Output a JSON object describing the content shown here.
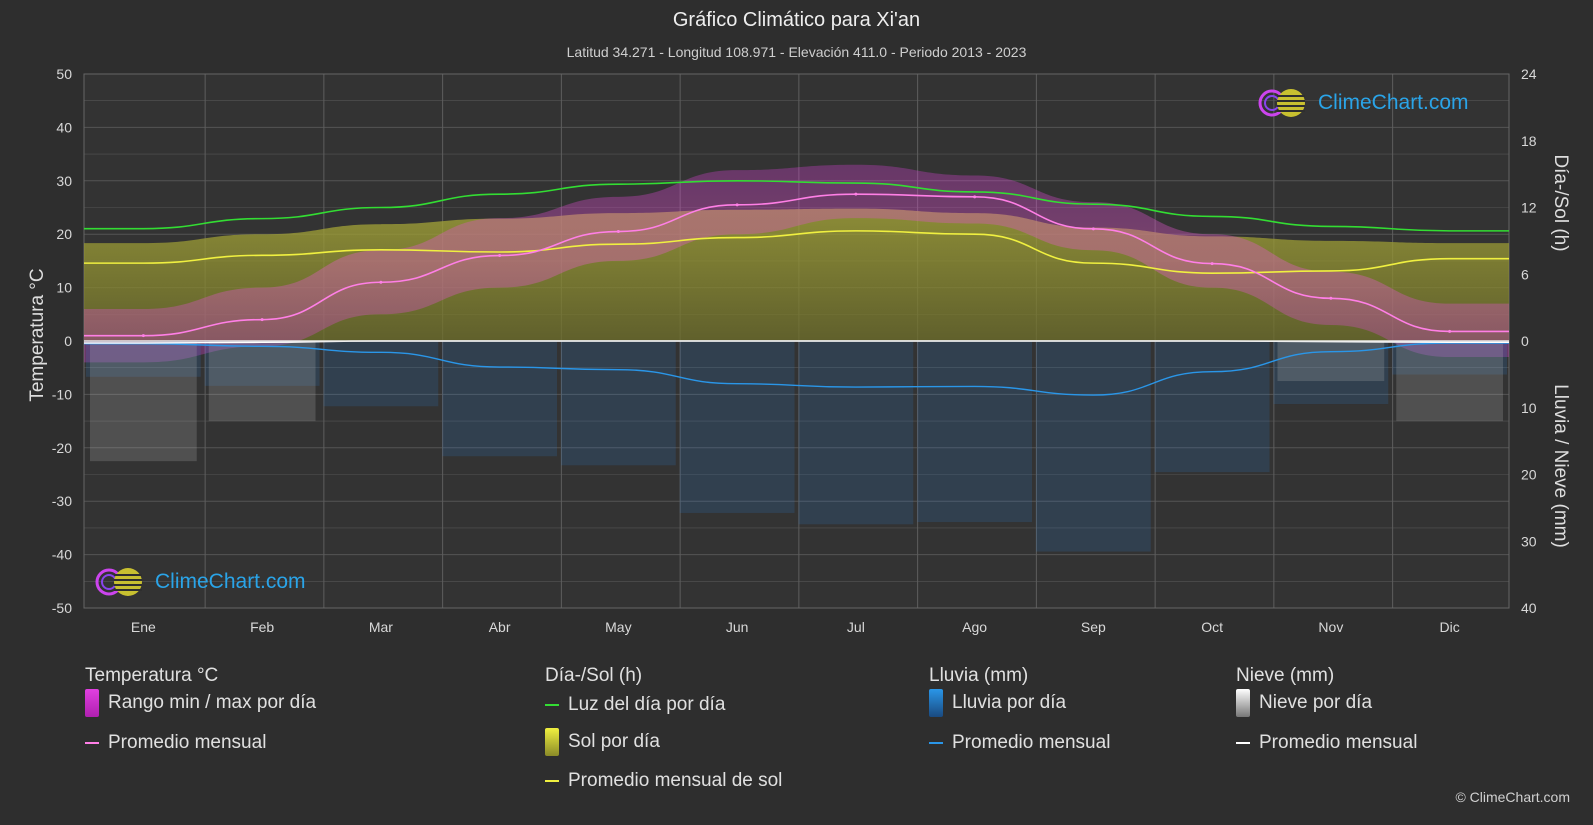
{
  "header": {
    "title": "Gráfico Climático para Xi'an",
    "subtitle": "Latitud 34.271 - Longitud 108.971 - Elevación 411.0 - Periodo 2013 - 2023"
  },
  "axes": {
    "left_title": "Temperatura °C",
    "right_top_title": "Día-/Sol (h)",
    "right_bottom_title": "Lluvia / Nieve (mm)"
  },
  "legend": {
    "temp": {
      "heading": "Temperatura °C",
      "range_label": "Rango min / max por día",
      "avg_label": "Promedio mensual"
    },
    "sun": {
      "heading": "Día-/Sol (h)",
      "daylight_label": "Luz del día por día",
      "sun_label": "Sol por día",
      "sun_avg_label": "Promedio mensual de sol"
    },
    "rain": {
      "heading": "Lluvia (mm)",
      "rain_label": "Lluvia por día",
      "avg_label": "Promedio mensual"
    },
    "snow": {
      "heading": "Nieve (mm)",
      "snow_label": "Nieve por día",
      "avg_label": "Promedio mensual"
    }
  },
  "logo": {
    "text": "ClimeChart.com"
  },
  "copyright": "© ClimeChart.com",
  "colors": {
    "background": "#2e2e2e",
    "temp_range": "#d838d8",
    "temp_avg": "#ff7fe6",
    "daylight": "#33dd33",
    "sunshine": "#c8c83a",
    "sun_avg": "#f0f040",
    "rain": "#2a7fd0",
    "rain_avg": "#2a96e8",
    "snow": "#bbbbbb",
    "snow_avg": "#ffffff",
    "grid": "#555555",
    "logo_text": "#2aa4e8"
  },
  "chart_data": {
    "type": "line",
    "categories": [
      "Ene",
      "Feb",
      "Mar",
      "Abr",
      "May",
      "Jun",
      "Jul",
      "Ago",
      "Sep",
      "Oct",
      "Nov",
      "Dic"
    ],
    "left_axis": {
      "label": "Temperatura °C",
      "ylim": [
        -50,
        50
      ],
      "ticks": [
        50,
        40,
        30,
        20,
        10,
        0,
        -10,
        -20,
        -30,
        -40,
        -50
      ]
    },
    "right_axis_sun": {
      "label": "Día-/Sol (h)",
      "ylim": [
        0,
        24
      ],
      "ticks": [
        24,
        18,
        12,
        6,
        0
      ]
    },
    "right_axis_precip": {
      "label": "Lluvia / Nieve (mm)",
      "ylim": [
        0,
        40
      ],
      "ticks": [
        0,
        10,
        20,
        30,
        40
      ],
      "inverted": true
    },
    "grid": true,
    "series": [
      {
        "name": "Promedio mensual",
        "group": "temperature",
        "axis": "left",
        "values": [
          1.0,
          4.0,
          11.0,
          16.0,
          20.5,
          25.5,
          27.5,
          27.0,
          21.0,
          14.5,
          8.0,
          1.8
        ]
      },
      {
        "name": "Rango min / max por día",
        "group": "temperature",
        "axis": "left",
        "min": [
          -4,
          -1,
          5,
          10,
          15,
          20,
          23,
          22,
          17,
          10,
          3,
          -3
        ],
        "max": [
          6,
          10,
          17,
          23,
          27,
          32,
          33,
          31,
          26,
          20,
          13,
          7
        ]
      },
      {
        "name": "Luz del día por día",
        "group": "sun",
        "axis": "right_sun",
        "values": [
          10.1,
          11.0,
          12.0,
          13.2,
          14.1,
          14.4,
          14.2,
          13.4,
          12.3,
          11.2,
          10.3,
          9.9
        ]
      },
      {
        "name": "Promedio mensual de sol",
        "group": "sun",
        "axis": "right_sun",
        "values": [
          7.0,
          7.7,
          8.2,
          8.0,
          8.7,
          9.3,
          9.9,
          9.6,
          7.0,
          6.1,
          6.3,
          7.4
        ]
      },
      {
        "name": "Sol por día",
        "group": "sun",
        "axis": "right_sun",
        "values": [
          8.8,
          9.6,
          10.5,
          11.0,
          11.5,
          11.8,
          11.9,
          11.5,
          10.2,
          9.4,
          9.0,
          8.8
        ]
      },
      {
        "name": "Promedio mensual",
        "group": "rain",
        "axis": "right_precip",
        "values": [
          0.4,
          0.8,
          1.7,
          3.9,
          4.3,
          6.4,
          6.9,
          6.8,
          8.1,
          4.6,
          1.6,
          0.3
        ]
      },
      {
        "name": "Promedio mensual",
        "group": "snow",
        "axis": "right_precip",
        "values": [
          0.3,
          0.2,
          0.0,
          0.0,
          0.0,
          0.0,
          0.0,
          0.0,
          0.0,
          0.0,
          0.1,
          0.2
        ]
      }
    ]
  }
}
